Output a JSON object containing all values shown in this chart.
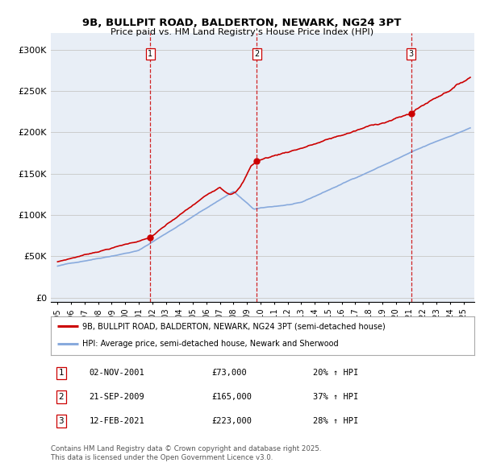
{
  "title_line1": "9B, BULLPIT ROAD, BALDERTON, NEWARK, NG24 3PT",
  "title_line2": "Price paid vs. HM Land Registry's House Price Index (HPI)",
  "xlim_start": 1994.5,
  "xlim_end": 2025.8,
  "ylim_min": -5000,
  "ylim_max": 320000,
  "yticks": [
    0,
    50000,
    100000,
    150000,
    200000,
    250000,
    300000
  ],
  "ytick_labels": [
    "£0",
    "£50K",
    "£100K",
    "£150K",
    "£200K",
    "£250K",
    "£300K"
  ],
  "xtick_years": [
    1995,
    1996,
    1997,
    1998,
    1999,
    2000,
    2001,
    2002,
    2003,
    2004,
    2005,
    2006,
    2007,
    2008,
    2009,
    2010,
    2011,
    2012,
    2013,
    2014,
    2015,
    2016,
    2017,
    2018,
    2019,
    2020,
    2021,
    2022,
    2023,
    2024,
    2025
  ],
  "sale_color": "#cc0000",
  "hpi_color": "#88aadd",
  "vline_color": "#cc0000",
  "grid_color": "#cccccc",
  "bg_color": "#e8eef6",
  "sales": [
    {
      "year": 2001.84,
      "price": 73000,
      "label": "1"
    },
    {
      "year": 2009.72,
      "price": 165000,
      "label": "2"
    },
    {
      "year": 2021.12,
      "price": 223000,
      "label": "3"
    }
  ],
  "legend_entries": [
    {
      "label": "9B, BULLPIT ROAD, BALDERTON, NEWARK, NG24 3PT (semi-detached house)",
      "color": "#cc0000"
    },
    {
      "label": "HPI: Average price, semi-detached house, Newark and Sherwood",
      "color": "#88aadd"
    }
  ],
  "table_rows": [
    {
      "num": "1",
      "date": "02-NOV-2001",
      "price": "£73,000",
      "hpi": "20% ↑ HPI"
    },
    {
      "num": "2",
      "date": "21-SEP-2009",
      "price": "£165,000",
      "hpi": "37% ↑ HPI"
    },
    {
      "num": "3",
      "date": "12-FEB-2021",
      "price": "£223,000",
      "hpi": "28% ↑ HPI"
    }
  ],
  "footnote": "Contains HM Land Registry data © Crown copyright and database right 2025.\nThis data is licensed under the Open Government Licence v3.0."
}
